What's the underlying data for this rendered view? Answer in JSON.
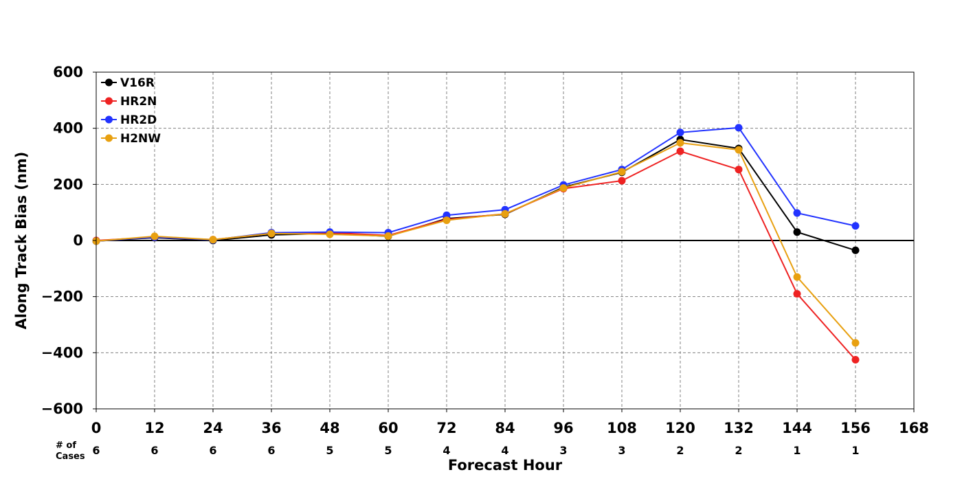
{
  "chart_data": {
    "type": "line",
    "xlabel": "Forecast Hour",
    "ylabel": "Along Track Bias (nm)",
    "xlim": [
      0,
      168
    ],
    "ylim": [
      -600,
      600
    ],
    "x_ticks": [
      0,
      12,
      24,
      36,
      48,
      60,
      72,
      84,
      96,
      108,
      120,
      132,
      144,
      156,
      168
    ],
    "y_ticks": [
      600,
      400,
      200,
      0,
      -200,
      -400,
      -600
    ],
    "y_tick_labels": [
      "600",
      "400",
      "200",
      "0",
      "−200",
      "−400",
      "−600"
    ],
    "grid": true,
    "legend_position": "top-left",
    "cases_label_line1": "# of",
    "cases_label_line2": "Cases",
    "cases": [
      {
        "x": 0,
        "n": "6"
      },
      {
        "x": 12,
        "n": "6"
      },
      {
        "x": 24,
        "n": "6"
      },
      {
        "x": 36,
        "n": "6"
      },
      {
        "x": 48,
        "n": "5"
      },
      {
        "x": 60,
        "n": "5"
      },
      {
        "x": 72,
        "n": "4"
      },
      {
        "x": 84,
        "n": "4"
      },
      {
        "x": 96,
        "n": "3"
      },
      {
        "x": 108,
        "n": "3"
      },
      {
        "x": 120,
        "n": "2"
      },
      {
        "x": 132,
        "n": "2"
      },
      {
        "x": 144,
        "n": "1"
      },
      {
        "x": 156,
        "n": "1"
      }
    ],
    "x": [
      0,
      12,
      24,
      36,
      48,
      60,
      72,
      84,
      96,
      108,
      120,
      132,
      144,
      156
    ],
    "series": [
      {
        "name": "V16R",
        "color": "#000000",
        "values": [
          -2,
          10,
          0,
          20,
          25,
          15,
          78,
          93,
          190,
          243,
          360,
          328,
          30,
          -35
        ]
      },
      {
        "name": "HR2N",
        "color": "#ee2222",
        "values": [
          0,
          12,
          3,
          25,
          28,
          18,
          75,
          95,
          185,
          213,
          318,
          253,
          -190,
          -425
        ]
      },
      {
        "name": "HR2D",
        "color": "#2233ff",
        "values": [
          -2,
          12,
          2,
          28,
          30,
          28,
          90,
          110,
          198,
          253,
          385,
          402,
          98,
          52
        ]
      },
      {
        "name": "H2NW",
        "color": "#e8a010",
        "values": [
          -2,
          15,
          3,
          25,
          22,
          16,
          72,
          95,
          187,
          245,
          348,
          323,
          -130,
          -365
        ]
      }
    ]
  }
}
